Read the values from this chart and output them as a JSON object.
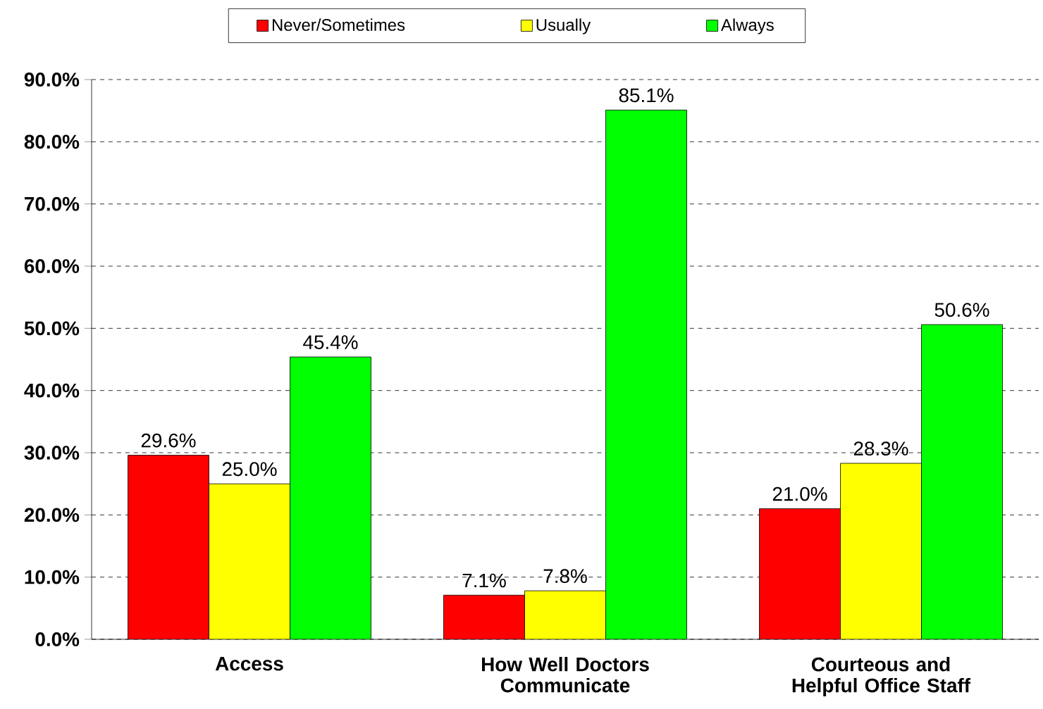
{
  "chart_data": {
    "type": "bar",
    "categories": [
      "Access",
      "How Well Doctors Communicate",
      "Courteous and Helpful Office Staff"
    ],
    "series": [
      {
        "name": "Never/Sometimes",
        "color": "#ff0000",
        "values": [
          29.6,
          7.1,
          21.0
        ],
        "value_labels": [
          "29.6%",
          "7.1%",
          "21.0%"
        ]
      },
      {
        "name": "Usually",
        "color": "#ffff00",
        "values": [
          25.0,
          7.8,
          28.3
        ],
        "value_labels": [
          "25.0%",
          "7.8%",
          "28.3%"
        ]
      },
      {
        "name": "Always",
        "color": "#00ff00",
        "values": [
          45.4,
          85.1,
          50.6
        ],
        "value_labels": [
          "45.4%",
          "85.1%",
          "50.6%"
        ]
      }
    ],
    "ylim": [
      0,
      90
    ],
    "yticks": [
      {
        "value": 0,
        "label": "0.0%"
      },
      {
        "value": 10,
        "label": "10.0%"
      },
      {
        "value": 20,
        "label": "20.0%"
      },
      {
        "value": 30,
        "label": "30.0%"
      },
      {
        "value": 40,
        "label": "40.0%"
      },
      {
        "value": 50,
        "label": "50.0%"
      },
      {
        "value": 60,
        "label": "60.0%"
      },
      {
        "value": 70,
        "label": "70.0%"
      },
      {
        "value": 80,
        "label": "80.0%"
      },
      {
        "value": 90,
        "label": "90.0%"
      }
    ],
    "grid": "y",
    "legend": "top"
  }
}
